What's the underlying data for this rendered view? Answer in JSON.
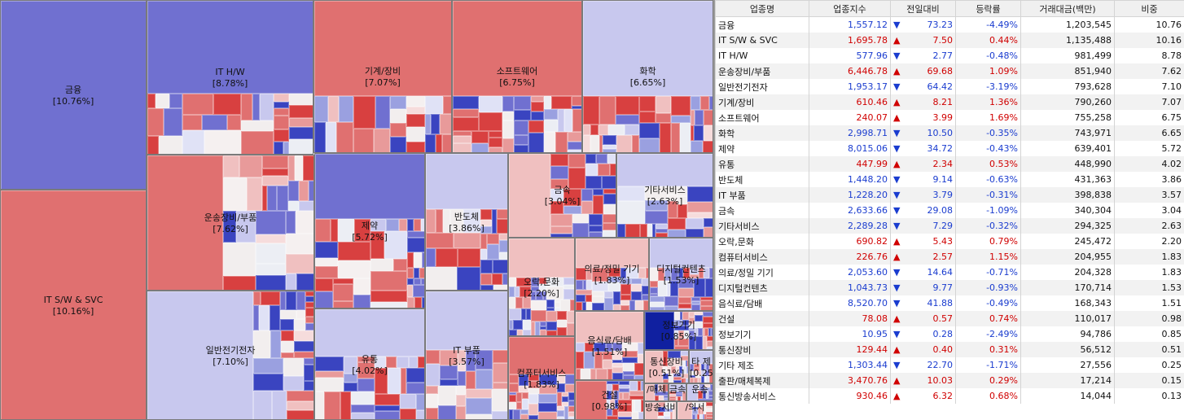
{
  "treemap": {
    "sectors": [
      {
        "key": "fin",
        "label": "금융",
        "pct": "[10.76%]"
      },
      {
        "key": "itsw",
        "label": "IT S/W & SVC",
        "pct": "[10.16%]"
      },
      {
        "key": "ithw",
        "label": "IT H/W",
        "pct": "[8.78%]"
      },
      {
        "key": "mach",
        "label": "기계/장비",
        "pct": "[7.07%]"
      },
      {
        "key": "sw",
        "label": "소프트웨어",
        "pct": "[6.75%]"
      },
      {
        "key": "chem",
        "label": "화학",
        "pct": "[6.65%]"
      },
      {
        "key": "trans",
        "label": "운송장비/부품",
        "pct": "[7.62%]"
      },
      {
        "key": "elec",
        "label": "일반전기전자",
        "pct": "[7.10%]"
      },
      {
        "key": "pharma",
        "label": "제약",
        "pct": "[5.72%]"
      },
      {
        "key": "dist",
        "label": "유통",
        "pct": "[4.02%]"
      },
      {
        "key": "semi",
        "label": "반도체",
        "pct": "[3.86%]"
      },
      {
        "key": "metal",
        "label": "금속",
        "pct": "[3.04%]"
      },
      {
        "key": "etcsvc",
        "label": "기타서비스",
        "pct": "[2.63%]"
      },
      {
        "key": "itparts",
        "label": "IT 부품",
        "pct": "[3.57%]"
      },
      {
        "key": "ent",
        "label": "오락,문화",
        "pct": "[2.20%]"
      },
      {
        "key": "med",
        "label": "의료/정밀 기기",
        "pct": "[1.83%]"
      },
      {
        "key": "digi",
        "label": "디지털컨텐츠",
        "pct": "[1.53%]"
      },
      {
        "key": "comsvc",
        "label": "컴퓨터서비스",
        "pct": "[1.83%]"
      },
      {
        "key": "food",
        "label": "음식료/담배",
        "pct": "[1.51%]"
      },
      {
        "key": "infoeq",
        "label": "정보기기",
        "pct": "[0.85%]"
      },
      {
        "key": "telecom",
        "label": "통신장비",
        "pct": "[0.51%]"
      },
      {
        "key": "etcmfg",
        "label": "타 제",
        "pct": "[0.25%]"
      },
      {
        "key": "const",
        "label": "건설",
        "pct": "[0.98%]"
      },
      {
        "key": "pub",
        "label": "/매체",
        "pct": ""
      },
      {
        "key": "metal2",
        "label": "금속",
        "pct": ""
      },
      {
        "key": "broad",
        "label": "방송서비스",
        "pct": ""
      },
      {
        "key": "trans2",
        "label": "운송",
        "pct": ""
      },
      {
        "key": "misc1",
        "label": "/의서",
        "pct": ""
      }
    ]
  },
  "table": {
    "headers": [
      "업종명",
      "업종지수",
      "전일대비",
      "등락률",
      "거래대금(백만)",
      "비중"
    ],
    "rows": [
      {
        "name": "금융",
        "index": "1,557.12",
        "dir": "down",
        "change": "73.23",
        "rate": "-4.49%",
        "volume": "1,203,545",
        "weight": "10.76"
      },
      {
        "name": "IT S/W & SVC",
        "index": "1,695.78",
        "dir": "up",
        "change": "7.50",
        "rate": "0.44%",
        "volume": "1,135,488",
        "weight": "10.16"
      },
      {
        "name": "IT H/W",
        "index": "577.96",
        "dir": "down",
        "change": "2.77",
        "rate": "-0.48%",
        "volume": "981,499",
        "weight": "8.78"
      },
      {
        "name": "운송장비/부품",
        "index": "6,446.78",
        "dir": "up",
        "change": "69.68",
        "rate": "1.09%",
        "volume": "851,940",
        "weight": "7.62"
      },
      {
        "name": "일반전기전자",
        "index": "1,953.17",
        "dir": "down",
        "change": "64.42",
        "rate": "-3.19%",
        "volume": "793,628",
        "weight": "7.10"
      },
      {
        "name": "기계/장비",
        "index": "610.46",
        "dir": "up",
        "change": "8.21",
        "rate": "1.36%",
        "volume": "790,260",
        "weight": "7.07"
      },
      {
        "name": "소프트웨어",
        "index": "240.07",
        "dir": "up",
        "change": "3.99",
        "rate": "1.69%",
        "volume": "755,258",
        "weight": "6.75"
      },
      {
        "name": "화학",
        "index": "2,998.71",
        "dir": "down",
        "change": "10.50",
        "rate": "-0.35%",
        "volume": "743,971",
        "weight": "6.65"
      },
      {
        "name": "제약",
        "index": "8,015.06",
        "dir": "down",
        "change": "34.72",
        "rate": "-0.43%",
        "volume": "639,401",
        "weight": "5.72"
      },
      {
        "name": "유통",
        "index": "447.99",
        "dir": "up",
        "change": "2.34",
        "rate": "0.53%",
        "volume": "448,990",
        "weight": "4.02"
      },
      {
        "name": "반도체",
        "index": "1,448.20",
        "dir": "down",
        "change": "9.14",
        "rate": "-0.63%",
        "volume": "431,363",
        "weight": "3.86"
      },
      {
        "name": "IT 부품",
        "index": "1,228.20",
        "dir": "down",
        "change": "3.79",
        "rate": "-0.31%",
        "volume": "398,838",
        "weight": "3.57"
      },
      {
        "name": "금속",
        "index": "2,633.66",
        "dir": "down",
        "change": "29.08",
        "rate": "-1.09%",
        "volume": "340,304",
        "weight": "3.04"
      },
      {
        "name": "기타서비스",
        "index": "2,289.28",
        "dir": "down",
        "change": "7.29",
        "rate": "-0.32%",
        "volume": "294,325",
        "weight": "2.63"
      },
      {
        "name": "오락,문화",
        "index": "690.82",
        "dir": "up",
        "change": "5.43",
        "rate": "0.79%",
        "volume": "245,472",
        "weight": "2.20"
      },
      {
        "name": "컴퓨터서비스",
        "index": "226.76",
        "dir": "up",
        "change": "2.57",
        "rate": "1.15%",
        "volume": "204,955",
        "weight": "1.83"
      },
      {
        "name": "의료/정밀 기기",
        "index": "2,053.60",
        "dir": "down",
        "change": "14.64",
        "rate": "-0.71%",
        "volume": "204,328",
        "weight": "1.83"
      },
      {
        "name": "디지털컨텐츠",
        "index": "1,043.73",
        "dir": "down",
        "change": "9.77",
        "rate": "-0.93%",
        "volume": "170,714",
        "weight": "1.53"
      },
      {
        "name": "음식료/담배",
        "index": "8,520.70",
        "dir": "down",
        "change": "41.88",
        "rate": "-0.49%",
        "volume": "168,343",
        "weight": "1.51"
      },
      {
        "name": "건설",
        "index": "78.08",
        "dir": "up",
        "change": "0.57",
        "rate": "0.74%",
        "volume": "110,017",
        "weight": "0.98"
      },
      {
        "name": "정보기기",
        "index": "10.95",
        "dir": "down",
        "change": "0.28",
        "rate": "-2.49%",
        "volume": "94,786",
        "weight": "0.85"
      },
      {
        "name": "통신장비",
        "index": "129.44",
        "dir": "up",
        "change": "0.40",
        "rate": "0.31%",
        "volume": "56,512",
        "weight": "0.51"
      },
      {
        "name": "기타 제조",
        "index": "1,303.44",
        "dir": "down",
        "change": "22.70",
        "rate": "-1.71%",
        "volume": "27,556",
        "weight": "0.25"
      },
      {
        "name": "출판/매체복제",
        "index": "3,470.76",
        "dir": "up",
        "change": "10.03",
        "rate": "0.29%",
        "volume": "17,214",
        "weight": "0.15"
      },
      {
        "name": "통신방송서비스",
        "index": "930.46",
        "dir": "up",
        "change": "6.32",
        "rate": "0.68%",
        "volume": "14,044",
        "weight": "0.13"
      }
    ]
  },
  "colors": {
    "up_strong": "#c00000",
    "up_mid": "#e07070",
    "up_light": "#f0c0c0",
    "down_strong": "#1020a0",
    "down_mid": "#7070d0",
    "down_light": "#c8c8ee",
    "up_text": "#d00000",
    "down_text": "#1a3ccf"
  },
  "icons": {
    "up": "triangle-up-icon",
    "down": "triangle-down-icon"
  }
}
